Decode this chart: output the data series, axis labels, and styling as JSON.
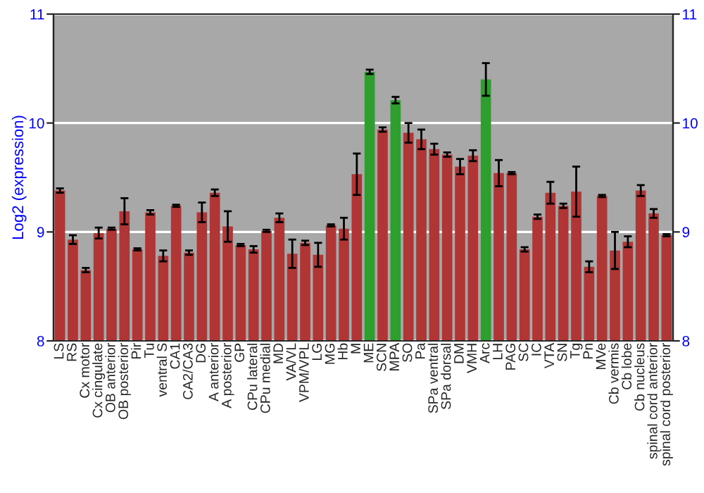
{
  "chart_data": {
    "type": "bar",
    "ylabel": "Log2 (expression)",
    "categories": [
      "LS",
      "RS",
      "Cx motor",
      "Cx cingulate",
      "OB anterior",
      "OB posterior",
      "Pir",
      "Tu",
      "ventral S",
      "CA1",
      "CA2/CA3",
      "DG",
      "A anterior",
      "A posterior",
      "GP",
      "CPu lateral",
      "CPu medial",
      "MD",
      "VA/VL",
      "VPM/VPL",
      "LG",
      "MG",
      "Hb",
      "M",
      "ME",
      "SCN",
      "MPA",
      "SO",
      "Pa",
      "SPa ventral",
      "SPa dorsal",
      "DM",
      "VMH",
      "Arc",
      "LH",
      "PAG",
      "SC",
      "IC",
      "VTA",
      "SN",
      "Tg",
      "Pn",
      "MVe",
      "Cb vermis",
      "Cb lobe",
      "Cb nucleus",
      "spinal cord anterior",
      "spinal cord posterior"
    ],
    "values": [
      9.38,
      8.93,
      8.65,
      8.99,
      9.03,
      9.19,
      8.84,
      9.18,
      8.78,
      9.24,
      8.81,
      9.18,
      9.36,
      9.05,
      8.88,
      8.84,
      9.01,
      9.13,
      8.8,
      8.9,
      8.79,
      9.06,
      9.03,
      9.53,
      10.47,
      9.94,
      10.21,
      9.91,
      9.85,
      9.76,
      9.71,
      9.6,
      9.7,
      10.4,
      9.54,
      9.54,
      8.84,
      9.14,
      9.36,
      9.24,
      9.37,
      8.68,
      9.33,
      8.83,
      8.91,
      9.38,
      9.17,
      8.97
    ],
    "errors": [
      0.02,
      0.04,
      0.02,
      0.05,
      0.01,
      0.12,
      0.01,
      0.02,
      0.05,
      0.01,
      0.02,
      0.09,
      0.03,
      0.14,
      0.01,
      0.03,
      0.01,
      0.04,
      0.13,
      0.02,
      0.11,
      0.01,
      0.1,
      0.19,
      0.02,
      0.02,
      0.03,
      0.09,
      0.09,
      0.05,
      0.02,
      0.07,
      0.05,
      0.15,
      0.12,
      0.01,
      0.02,
      0.02,
      0.1,
      0.02,
      0.23,
      0.05,
      0.01,
      0.17,
      0.05,
      0.05,
      0.04,
      0.01
    ],
    "colors": [
      "#b03636",
      "#b03636",
      "#b03636",
      "#b03636",
      "#b03636",
      "#b03636",
      "#b03636",
      "#b03636",
      "#b03636",
      "#b03636",
      "#b03636",
      "#b03636",
      "#b03636",
      "#b03636",
      "#b03636",
      "#b03636",
      "#b03636",
      "#b03636",
      "#b03636",
      "#b03636",
      "#b03636",
      "#b03636",
      "#b03636",
      "#b03636",
      "#2e9e2e",
      "#b03636",
      "#2e9e2e",
      "#b03636",
      "#b03636",
      "#b03636",
      "#b03636",
      "#b03636",
      "#b03636",
      "#2e9e2e",
      "#b03636",
      "#b03636",
      "#b03636",
      "#b03636",
      "#b03636",
      "#b03636",
      "#b03636",
      "#b03636",
      "#b03636",
      "#b03636",
      "#b03636",
      "#b03636",
      "#b03636",
      "#b03636"
    ],
    "ylim": [
      8,
      11
    ],
    "yticks": [
      8,
      9,
      10,
      11
    ],
    "y2lim": [
      8,
      11
    ],
    "y2ticks": [
      8,
      9,
      10,
      11
    ],
    "grid": "y"
  }
}
